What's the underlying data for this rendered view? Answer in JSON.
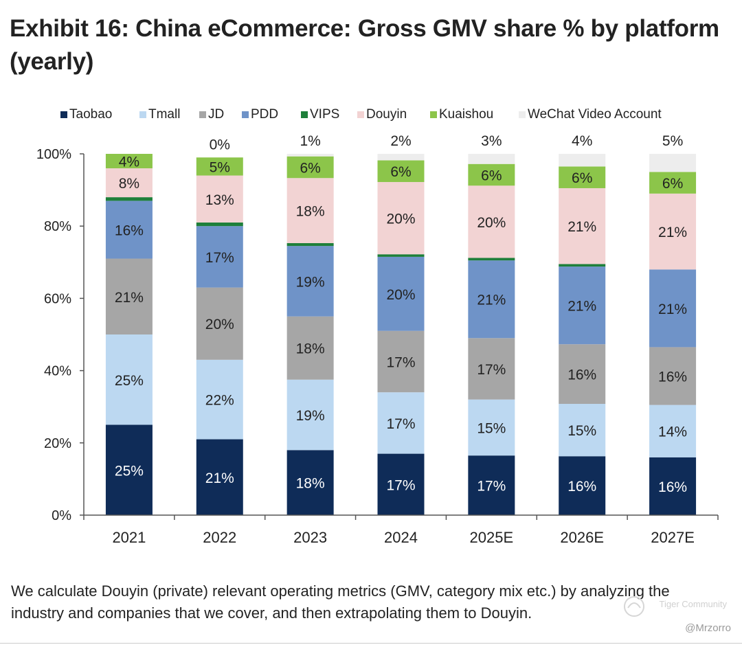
{
  "title": "Exhibit 16: China eCommerce: Gross GMV share % by platform (yearly)",
  "footnote": "We calculate Douyin (private) relevant operating metrics (GMV, category mix etc.) by analyzing the industry and companies that we cover, and then extrapolating them to Douyin.",
  "watermark": {
    "community": "Tiger Community",
    "handle": "@Mrzorro"
  },
  "chart_data": {
    "type": "bar",
    "stacked": true,
    "categories": [
      "2021",
      "2022",
      "2023",
      "2024",
      "2025E",
      "2026E",
      "2027E"
    ],
    "ylim": [
      0,
      100
    ],
    "yticks": [
      "0%",
      "20%",
      "40%",
      "60%",
      "80%",
      "100%"
    ],
    "legend_position": "top",
    "series": [
      {
        "name": "Taobao",
        "color": "#0f2c58",
        "label_color": "#ffffff",
        "values": [
          25,
          21,
          18,
          17,
          16.5,
          16.3,
          16
        ],
        "labels": [
          "25%",
          "21%",
          "18%",
          "17%",
          "17%",
          "16%",
          "16%"
        ]
      },
      {
        "name": "Tmall",
        "color": "#bcd8f1",
        "label_color": "#222222",
        "values": [
          25,
          22,
          19.5,
          17,
          15.5,
          14.5,
          14.5
        ],
        "labels": [
          "25%",
          "22%",
          "19%",
          "17%",
          "15%",
          "15%",
          "14%"
        ]
      },
      {
        "name": "JD",
        "color": "#a6a6a6",
        "label_color": "#222222",
        "values": [
          21,
          20,
          17.5,
          17,
          17,
          16.5,
          16
        ],
        "labels": [
          "21%",
          "20%",
          "18%",
          "17%",
          "17%",
          "16%",
          "16%"
        ]
      },
      {
        "name": "PDD",
        "color": "#6f93c8",
        "label_color": "#222222",
        "values": [
          16,
          17,
          19.5,
          20.5,
          21.5,
          21.5,
          21.5
        ],
        "labels": [
          "16%",
          "17%",
          "19%",
          "20%",
          "21%",
          "21%",
          "21%"
        ]
      },
      {
        "name": "VIPS",
        "color": "#1e7f3a",
        "label_color": "#222222",
        "values": [
          1,
          1,
          0.8,
          0.7,
          0.7,
          0.7,
          0
        ],
        "labels": [
          "",
          "",
          "",
          "",
          "",
          "",
          ""
        ]
      },
      {
        "name": "Douyin",
        "color": "#f2d3d3",
        "label_color": "#222222",
        "values": [
          8,
          13,
          18,
          20,
          20,
          21,
          21
        ],
        "labels": [
          "8%",
          "13%",
          "18%",
          "20%",
          "20%",
          "21%",
          "21%"
        ]
      },
      {
        "name": "Kuaishou",
        "color": "#8cc54a",
        "label_color": "#222222",
        "values": [
          4,
          5,
          6,
          6,
          6,
          6,
          6
        ],
        "labels": [
          "4%",
          "5%",
          "6%",
          "6%",
          "6%",
          "6%",
          "6%"
        ]
      },
      {
        "name": "WeChat Video Account",
        "color": "#ededed",
        "label_color": "#222222",
        "values": [
          0,
          0,
          0.7,
          1.8,
          2.8,
          3.5,
          5
        ],
        "labels": [
          "",
          "0%",
          "1%",
          "2%",
          "3%",
          "4%",
          "5%"
        ]
      }
    ]
  }
}
